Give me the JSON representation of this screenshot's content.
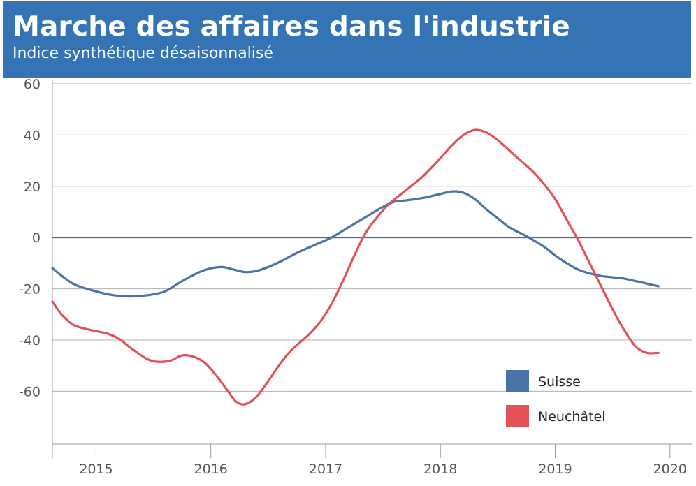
{
  "header": {
    "title": "Marche des affaires dans l'industrie",
    "subtitle": "Indice synthétique désaisonnalisé"
  },
  "colors": {
    "header_bg": "#3474b4",
    "suisse": "#4a74a8",
    "neuchatel": "#e05257",
    "zero_line": "#2e6fab",
    "grid": "#b0b0b0"
  },
  "chart_data": {
    "type": "line",
    "title": "Marche des affaires dans l'industrie",
    "subtitle": "Indice synthétique désaisonnalisé",
    "xlim": [
      2014.62,
      2020.19
    ],
    "ylim": [
      -80,
      60
    ],
    "y_ticks": [
      60,
      40,
      20,
      0,
      -20,
      -40,
      -60
    ],
    "x_ticks": [
      2015,
      2016,
      2017,
      2018,
      2019,
      2020
    ],
    "grid": "horizontal",
    "legend_position": "bottom-right",
    "series": [
      {
        "name": "Suisse",
        "color": "#4a74a8",
        "x": [
          2014.62,
          2014.8,
          2015.0,
          2015.15,
          2015.3,
          2015.45,
          2015.6,
          2015.75,
          2015.9,
          2016.0,
          2016.1,
          2016.2,
          2016.3,
          2016.4,
          2016.5,
          2016.6,
          2016.75,
          2016.9,
          2017.05,
          2017.2,
          2017.35,
          2017.5,
          2017.6,
          2017.7,
          2017.85,
          2018.0,
          2018.1,
          2018.2,
          2018.3,
          2018.4,
          2018.5,
          2018.6,
          2018.75,
          2018.9,
          2019.0,
          2019.1,
          2019.2,
          2019.3,
          2019.4,
          2019.5,
          2019.6,
          2019.7,
          2019.8,
          2019.9
        ],
        "values": [
          -12,
          -18,
          -21,
          -22.5,
          -23,
          -22.5,
          -21,
          -17,
          -13.5,
          -12,
          -11.5,
          -12.5,
          -13.5,
          -13,
          -11.5,
          -9.5,
          -6,
          -3,
          0,
          4,
          8,
          12,
          14,
          14.5,
          15.5,
          17,
          18,
          17.5,
          15,
          11,
          7.5,
          4,
          0.5,
          -3.5,
          -7,
          -10,
          -12.5,
          -14,
          -15,
          -15.5,
          -16,
          -17,
          -18,
          -19
        ]
      },
      {
        "name": "Neuchâtel",
        "color": "#e05257",
        "x": [
          2014.62,
          2014.7,
          2014.8,
          2014.9,
          2015.0,
          2015.1,
          2015.2,
          2015.3,
          2015.45,
          2015.55,
          2015.65,
          2015.75,
          2015.85,
          2015.95,
          2016.05,
          2016.15,
          2016.22,
          2016.3,
          2016.4,
          2016.5,
          2016.6,
          2016.7,
          2016.85,
          2016.95,
          2017.05,
          2017.15,
          2017.25,
          2017.35,
          2017.45,
          2017.55,
          2017.7,
          2017.85,
          2018.0,
          2018.1,
          2018.2,
          2018.3,
          2018.4,
          2018.5,
          2018.6,
          2018.7,
          2018.8,
          2018.9,
          2019.0,
          2019.1,
          2019.2,
          2019.3,
          2019.4,
          2019.5,
          2019.6,
          2019.7,
          2019.8,
          2019.9
        ],
        "values": [
          -25,
          -30,
          -34,
          -35.5,
          -36.5,
          -37.5,
          -39.5,
          -43,
          -47.5,
          -48.5,
          -48,
          -46,
          -46.5,
          -49,
          -54,
          -60,
          -64,
          -65,
          -62,
          -56,
          -49.5,
          -44,
          -38,
          -33,
          -26,
          -17,
          -7,
          2,
          8,
          13,
          18.5,
          24,
          31,
          36,
          40,
          42,
          41,
          38,
          34,
          30,
          26,
          21,
          15,
          7,
          -1,
          -10,
          -19,
          -28,
          -36,
          -42.5,
          -45,
          -45
        ]
      }
    ]
  }
}
